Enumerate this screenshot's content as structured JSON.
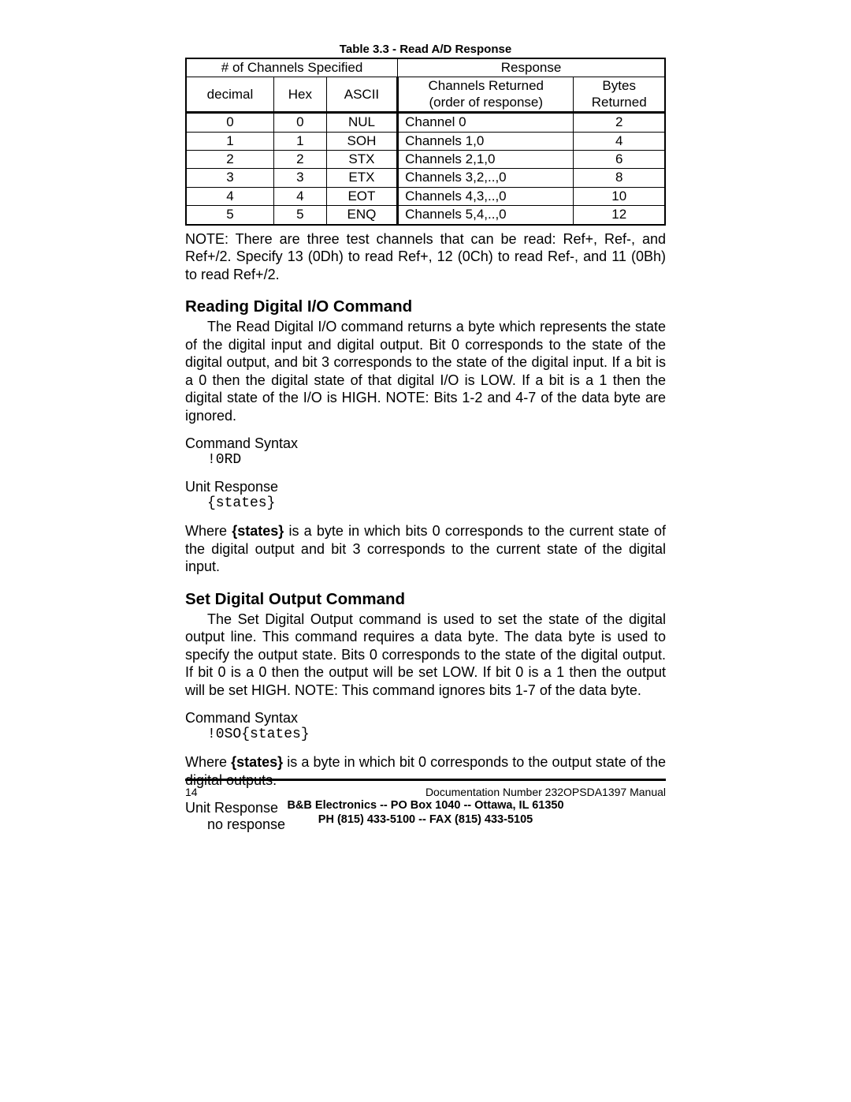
{
  "table": {
    "caption": "Table 3.3 - Read A/D Response",
    "group_headers": [
      "# of Channels Specified",
      "Response"
    ],
    "sub_headers": {
      "decimal": "decimal",
      "hex": "Hex",
      "ascii": "ASCII",
      "channels_returned_l1": "Channels Returned",
      "channels_returned_l2": "(order of response)",
      "bytes_l1": "Bytes",
      "bytes_l2": "Returned"
    },
    "rows": [
      {
        "dec": "0",
        "hex": "0",
        "ascii": "NUL",
        "chan": "Channel 0",
        "bytes": "2"
      },
      {
        "dec": "1",
        "hex": "1",
        "ascii": "SOH",
        "chan": "Channels 1,0",
        "bytes": "4"
      },
      {
        "dec": "2",
        "hex": "2",
        "ascii": "STX",
        "chan": "Channels 2,1,0",
        "bytes": "6"
      },
      {
        "dec": "3",
        "hex": "3",
        "ascii": "ETX",
        "chan": "Channels 3,2,..,0",
        "bytes": "8"
      },
      {
        "dec": "4",
        "hex": "4",
        "ascii": "EOT",
        "chan": "Channels 4,3,..,0",
        "bytes": "10"
      },
      {
        "dec": "5",
        "hex": "5",
        "ascii": "ENQ",
        "chan": "Channels 5,4,..,0",
        "bytes": "12"
      }
    ]
  },
  "note": "NOTE: There are three test channels that can be read: Ref+, Ref-, and Ref+/2. Specify 13 (0Dh) to read Ref+, 12 (0Ch) to read Ref-, and 11 (0Bh) to read Ref+/2.",
  "section1": {
    "title": "Reading Digital I/O Command",
    "body": "The Read Digital I/O command returns a byte which represents the state of the digital input and digital output. Bit 0 corresponds to the state of the digital output, and bit 3 corresponds to the state of the digital input. If a bit is a 0 then the digital state of that digital I/O is LOW. If a bit is a 1 then the digital state of the I/O is HIGH. NOTE: Bits 1-2 and 4-7 of the data byte are ignored.",
    "cmd_label": "Command Syntax",
    "cmd_code": "!0RD",
    "resp_label": "Unit Response",
    "resp_code": "{states}",
    "where_pre": "Where ",
    "where_bold": "{states}",
    "where_post": " is a byte in which bits 0 corresponds to the current state of the digital output and bit 3 corresponds to the current state of the digital input."
  },
  "section2": {
    "title": "Set Digital Output Command",
    "body": "The Set Digital Output command is used to set the state of the digital output line. This command requires a data byte. The data byte is used to specify the output state. Bits 0 corresponds to the state of the digital output. If bit 0 is a 0 then the output will be set LOW. If bit 0 is a 1 then the output will be set HIGH. NOTE: This command ignores bits 1-7 of the data byte.",
    "cmd_label": "Command Syntax",
    "cmd_code": "!0SO{states}",
    "where_pre": "Where ",
    "where_bold": "{states}",
    "where_post": " is a byte in which bit 0 corresponds to the output state of the digital outputs.",
    "resp_label": "Unit Response",
    "resp_code": "no response"
  },
  "footer": {
    "page_number": "14",
    "doc": "Documentation Number 232OPSDA1397 Manual",
    "line2": "B&B Electronics  --  PO Box 1040  --  Ottawa, IL  61350",
    "line3": "PH (815) 433-5100  --  FAX (815) 433-5105"
  }
}
